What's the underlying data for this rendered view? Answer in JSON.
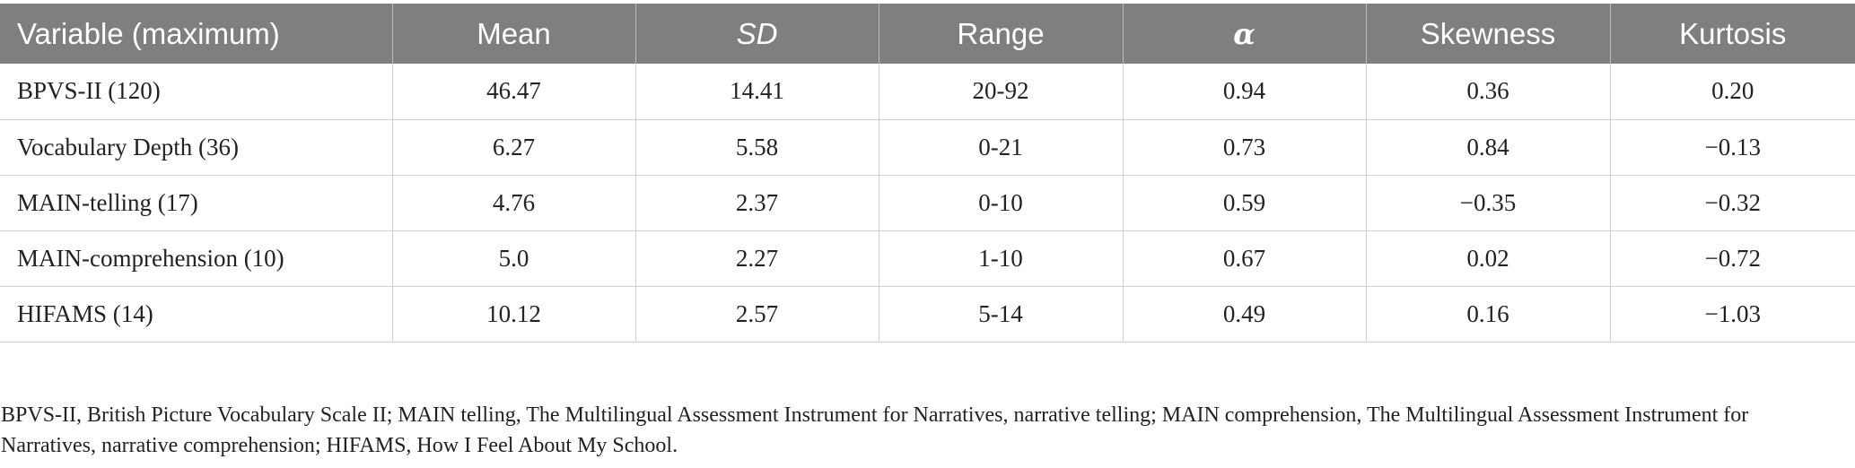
{
  "table": {
    "headers": [
      "Variable (maximum)",
      "Mean",
      "SD",
      "Range",
      "α",
      "Skewness",
      "Kurtosis"
    ],
    "rows": [
      [
        "BPVS-II (120)",
        "46.47",
        "14.41",
        "20-92",
        "0.94",
        "0.36",
        "0.20"
      ],
      [
        "Vocabulary Depth (36)",
        "6.27",
        "5.58",
        "0-21",
        "0.73",
        "0.84",
        "−0.13"
      ],
      [
        "MAIN-telling (17)",
        "4.76",
        "2.37",
        "0-10",
        "0.59",
        "−0.35",
        "−0.32"
      ],
      [
        "MAIN-comprehension (10)",
        "5.0",
        "2.27",
        "1-10",
        "0.67",
        "0.02",
        "−0.72"
      ],
      [
        "HIFAMS (14)",
        "10.12",
        "2.57",
        "5-14",
        "0.49",
        "0.16",
        "−1.03"
      ]
    ]
  },
  "footnote": "BPVS-II, British Picture Vocabulary Scale II; MAIN telling, The Multilingual Assessment Instrument for Narratives, narrative telling; MAIN comprehension, The Multilingual Assessment Instrument for Narratives, narrative comprehension; HIFAMS, How I Feel About My School.",
  "colors": {
    "header_background": "#7f7f7e",
    "header_text": "#ffffff",
    "grid_lines": "#cfcfcf",
    "body_text": "#222222"
  }
}
